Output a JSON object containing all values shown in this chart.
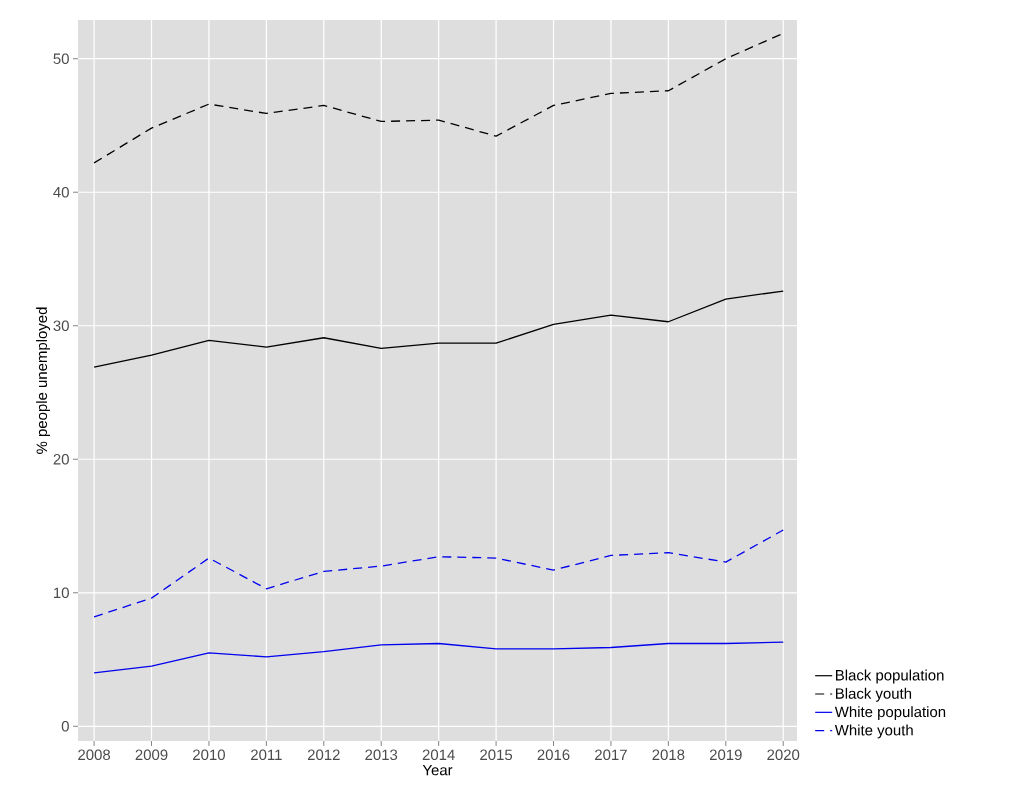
{
  "chart_data": {
    "type": "line",
    "xlabel": "Year",
    "ylabel": "% people unemployed",
    "x": [
      2008,
      2009,
      2010,
      2011,
      2012,
      2013,
      2014,
      2015,
      2016,
      2017,
      2018,
      2019,
      2020
    ],
    "xlim": [
      2007.72,
      2020.24
    ],
    "xticks": [
      2008,
      2009,
      2010,
      2011,
      2012,
      2013,
      2014,
      2015,
      2016,
      2017,
      2018,
      2019,
      2020
    ],
    "ylim": [
      -1.1,
      52.9
    ],
    "yticks": [
      0,
      10,
      20,
      30,
      40,
      50
    ],
    "grid": true,
    "legend": "right",
    "marker": "none",
    "series": [
      {
        "name": "Black population",
        "color": "#000000",
        "line_style": "solid",
        "values": [
          26.9,
          27.8,
          28.9,
          28.4,
          29.1,
          28.3,
          28.7,
          28.7,
          30.1,
          30.8,
          30.3,
          32.0,
          32.6
        ]
      },
      {
        "name": "Black youth",
        "color": "#000000",
        "line_style": "dashed",
        "values": [
          42.2,
          44.8,
          46.6,
          45.9,
          46.5,
          45.3,
          45.4,
          44.2,
          46.5,
          47.4,
          47.6,
          50.0,
          51.9
        ]
      },
      {
        "name": "White population",
        "color": "#0000ee",
        "line_style": "solid",
        "values": [
          4.0,
          4.5,
          5.5,
          5.2,
          5.6,
          6.1,
          6.2,
          5.8,
          5.8,
          5.9,
          6.2,
          6.2,
          6.3
        ]
      },
      {
        "name": "White youth",
        "color": "#0000ee",
        "line_style": "dashed",
        "values": [
          8.2,
          9.6,
          12.6,
          10.3,
          11.6,
          12.0,
          12.7,
          12.6,
          11.7,
          12.8,
          13.0,
          12.3,
          14.7
        ]
      }
    ]
  }
}
